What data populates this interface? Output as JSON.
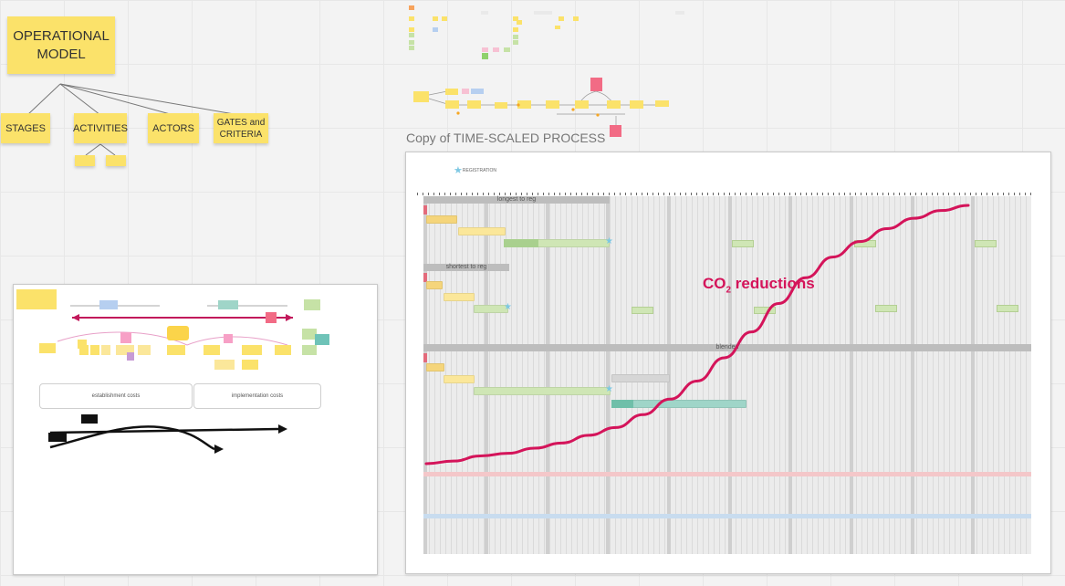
{
  "operational_model": {
    "title": "OPERATIONAL\nMODEL",
    "children": [
      "STAGES",
      "ACTIVITIES",
      "ACTORS",
      "GATES and\nCRITERIA"
    ],
    "sub_notes": [
      "",
      ""
    ]
  },
  "process": {
    "title": "Copy of TIME-SCALED PROCESS",
    "legend_registration": "REGISTRATION",
    "bands": {
      "longest": "longest to reg",
      "shortest": "shortest to reg",
      "blended": "blended"
    },
    "co2_prefix": "CO",
    "co2_sub": "2",
    "co2_suffix": " reductions"
  },
  "left_frame": {
    "establishment_costs": "establishment costs",
    "implementation_costs": "implementation costs"
  },
  "chart_data": {
    "type": "line",
    "title": "",
    "series": [
      {
        "name": "CO₂ reductions",
        "x": [
          0,
          5,
          10,
          15,
          20,
          25,
          30,
          35,
          40,
          45,
          50,
          55,
          60,
          65,
          70,
          75,
          80,
          85,
          90,
          95,
          100
        ],
        "y": [
          0,
          1,
          3,
          4,
          6,
          8,
          11,
          14,
          19,
          25,
          32,
          41,
          51,
          62,
          72,
          80,
          86,
          91,
          95,
          98,
          100
        ]
      }
    ],
    "xlim": [
      0,
      100
    ],
    "ylim": [
      0,
      100
    ],
    "grid": true
  },
  "colors": {
    "sticky_yellow": "#fbe26a",
    "curve": "#d4145a",
    "band_red": "#f4c7c9",
    "band_blue": "#c8dcef"
  }
}
